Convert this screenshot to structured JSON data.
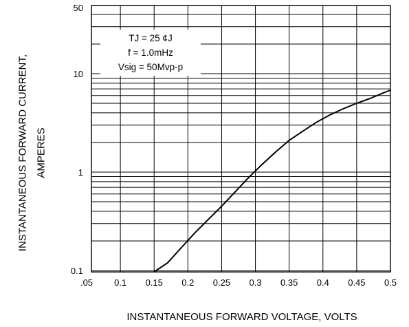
{
  "chart_data": {
    "type": "line",
    "title": "",
    "xlabel": "INSTANTANEOUS FORWARD VOLTAGE, VOLTS",
    "ylabel_lines": [
      "INSTANTANEOUS FORWARD CURRENT,",
      "AMPERES"
    ],
    "yscale": "log",
    "xlim": [
      0.05,
      0.5
    ],
    "ylim": [
      0.08,
      50
    ],
    "x_ticks": [
      0.05,
      0.1,
      0.15,
      0.2,
      0.25,
      0.3,
      0.35,
      0.4,
      0.45,
      0.5
    ],
    "x_tick_labels": [
      ".05",
      "0.1",
      "0.15",
      "0.2",
      "0.25",
      "0.3",
      "0.35",
      "0.4",
      "0.45",
      "0.5"
    ],
    "y_ticks": [
      0.1,
      1,
      10,
      50
    ],
    "y_tick_labels": [
      "0.1",
      "1",
      "10",
      "50"
    ],
    "grid": true,
    "annotation": [
      "TJ = 25 ¢J",
      "f = 1.0mHz",
      "Vsig = 50Mvp-p"
    ],
    "series": [
      {
        "x": [
          0.15,
          0.17,
          0.19,
          0.21,
          0.23,
          0.25,
          0.27,
          0.29,
          0.31,
          0.33,
          0.35,
          0.37,
          0.39,
          0.41,
          0.43,
          0.45,
          0.47,
          0.49,
          0.5
        ],
        "y": [
          0.08,
          0.12,
          0.17,
          0.24,
          0.33,
          0.45,
          0.63,
          0.88,
          1.2,
          1.6,
          2.1,
          2.6,
          3.2,
          3.8,
          4.4,
          5.0,
          5.6,
          6.4,
          6.8
        ]
      }
    ]
  }
}
